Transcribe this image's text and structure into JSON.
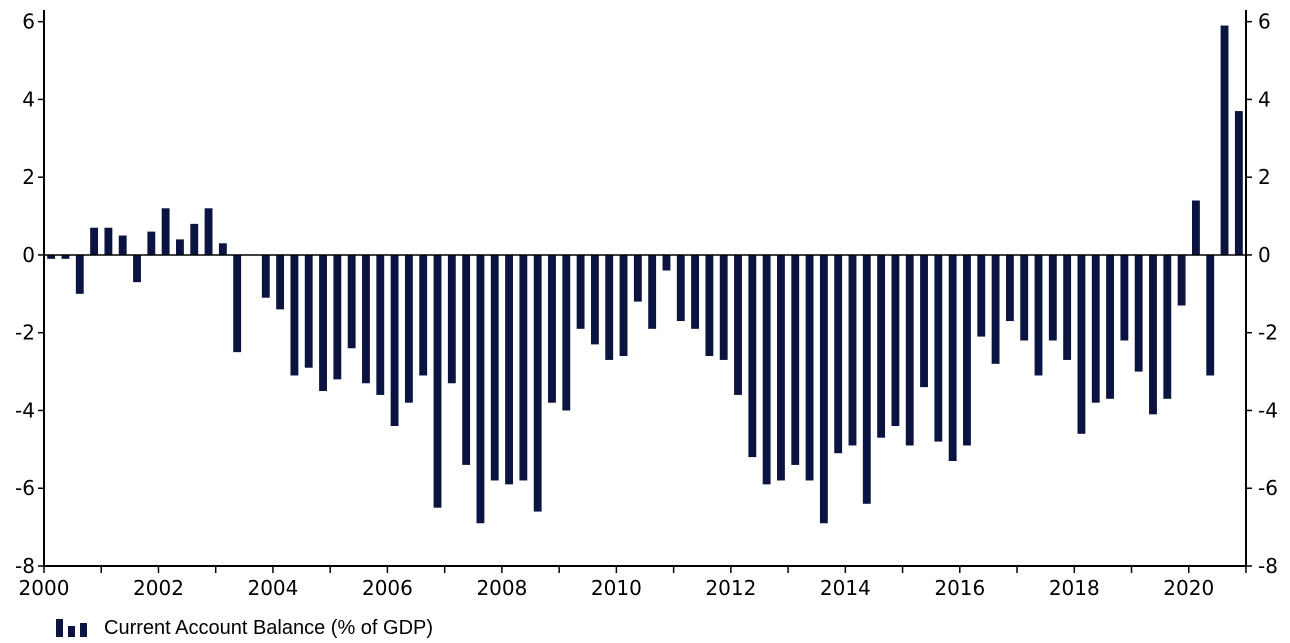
{
  "chart_data": {
    "type": "bar",
    "title": "",
    "xlabel": "",
    "ylabel": "",
    "ylim": [
      -8,
      6.3
    ],
    "y_ticks": [
      -8,
      -6,
      -4,
      -2,
      0,
      2,
      4,
      6
    ],
    "y_tick_labels": [
      "-8",
      "-6",
      "-4",
      "-2",
      "0",
      "2",
      "4",
      "6"
    ],
    "x_range": [
      2000,
      2021
    ],
    "x_ticks": [
      2000,
      2002,
      2004,
      2006,
      2008,
      2010,
      2012,
      2014,
      2016,
      2018,
      2020
    ],
    "x_tick_labels": [
      "2000",
      "2002",
      "2004",
      "2006",
      "2008",
      "2010",
      "2012",
      "2014",
      "2016",
      "2018",
      "2020"
    ],
    "frequency": "quarterly",
    "first_period": "2000 Q1",
    "grid": false,
    "legend_position": "bottom-left",
    "color": "#0b1440",
    "series": [
      {
        "name": "Current Account Balance (% of GDP)",
        "values": [
          -0.1,
          -0.1,
          -1.0,
          0.7,
          0.7,
          0.5,
          -0.7,
          0.6,
          1.2,
          0.4,
          0.8,
          1.2,
          0.3,
          -2.5,
          0.0,
          -1.1,
          -1.4,
          -3.1,
          -2.9,
          -3.5,
          -3.2,
          -2.4,
          -3.3,
          -3.6,
          -4.4,
          -3.8,
          -3.1,
          -6.5,
          -3.3,
          -5.4,
          -6.9,
          -5.8,
          -5.9,
          -5.8,
          -6.6,
          -3.8,
          -4.0,
          -1.9,
          -2.3,
          -2.7,
          -2.6,
          -1.2,
          -1.9,
          -0.4,
          -1.7,
          -1.9,
          -2.6,
          -2.7,
          -3.6,
          -5.2,
          -5.9,
          -5.8,
          -5.4,
          -5.8,
          -6.9,
          -5.1,
          -4.9,
          -6.4,
          -4.7,
          -4.4,
          -4.9,
          -3.4,
          -4.8,
          -5.3,
          -4.9,
          -2.1,
          -2.8,
          -1.7,
          -2.2,
          -3.1,
          -2.2,
          -2.7,
          -4.6,
          -3.8,
          -3.7,
          -2.2,
          -3.0,
          -4.1,
          -3.7,
          -1.3,
          1.4,
          -3.1,
          5.9,
          3.7
        ]
      }
    ]
  }
}
